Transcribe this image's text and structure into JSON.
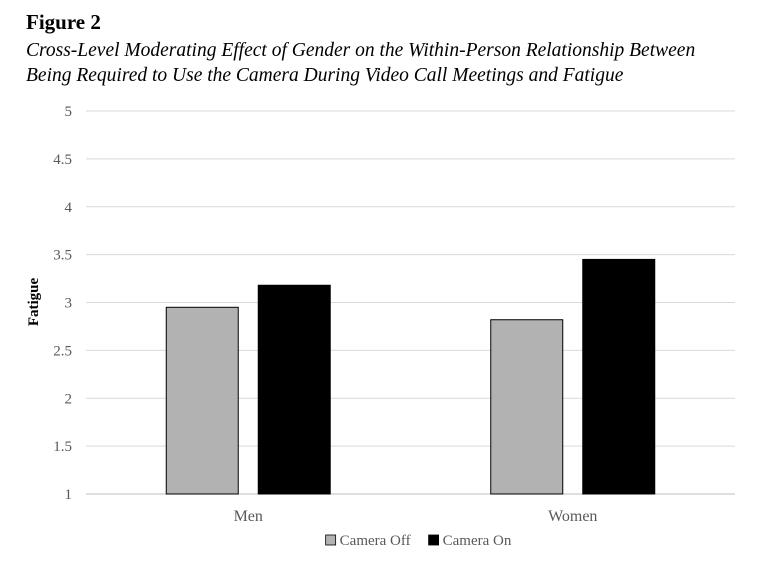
{
  "figure": {
    "label": "Figure 2",
    "caption_lines": [
      "Cross-Level Moderating Effect of Gender on the Within-Person Relationship Between",
      "Being Required to Use the Camera During Video Call Meetings and Fatigue"
    ]
  },
  "chart_data": {
    "type": "bar",
    "categories": [
      "Men",
      "Women"
    ],
    "series": [
      {
        "name": "Camera Off",
        "values": [
          2.95,
          2.82
        ],
        "color": "#b2b2b2"
      },
      {
        "name": "Camera On",
        "values": [
          3.18,
          3.45
        ],
        "color": "#000000"
      }
    ],
    "ylabel": "Fatigue",
    "xlabel": "",
    "ylim": [
      1,
      5
    ],
    "yticks": [
      "1",
      "1.5",
      "2",
      "2.5",
      "3",
      "3.5",
      "4",
      "4.5",
      "5"
    ],
    "grid": true,
    "legend_position": "bottom"
  }
}
